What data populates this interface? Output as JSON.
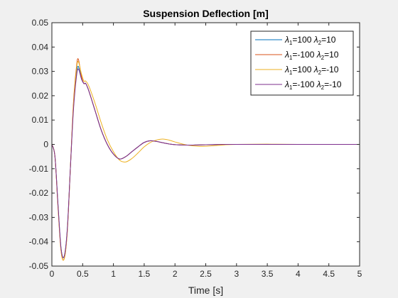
{
  "chart_data": {
    "type": "line",
    "title": "Suspension Deflection [m]",
    "xlabel": "Time [s]",
    "ylabel": "",
    "xlim": [
      0,
      5
    ],
    "ylim": [
      -0.05,
      0.05
    ],
    "xticks": [
      0,
      0.5,
      1,
      1.5,
      2,
      2.5,
      3,
      3.5,
      4,
      4.5,
      5
    ],
    "xtick_labels": [
      "0",
      "0.5",
      "1",
      "1.5",
      "2",
      "2.5",
      "3",
      "3.5",
      "4",
      "4.5",
      "5"
    ],
    "yticks": [
      -0.05,
      -0.04,
      -0.03,
      -0.02,
      -0.01,
      0,
      0.01,
      0.02,
      0.03,
      0.04,
      0.05
    ],
    "ytick_labels": [
      "-0.05",
      "-0.04",
      "-0.03",
      "-0.02",
      "-0.01",
      "0",
      "0.01",
      "0.02",
      "0.03",
      "0.04",
      "0.05"
    ],
    "grid": false,
    "legend_position": "top-right",
    "series": [
      {
        "legend": {
          "l1": "=100 ",
          "l2": "=10"
        },
        "color": "#0072BD",
        "x": [
          0,
          0.05,
          0.1,
          0.15,
          0.2,
          0.25,
          0.3,
          0.35,
          0.4,
          0.43,
          0.48,
          0.52,
          0.55,
          0.6,
          0.7,
          0.8,
          0.9,
          1.0,
          1.1,
          1.2,
          1.3,
          1.4,
          1.5,
          1.6,
          1.7,
          1.8,
          1.9,
          2.0,
          2.2,
          2.4,
          2.6,
          2.8,
          3.0,
          3.5,
          4.0,
          5.0
        ],
        "y": [
          0,
          -0.005,
          -0.025,
          -0.043,
          -0.046,
          -0.035,
          -0.01,
          0.015,
          0.029,
          0.032,
          0.027,
          0.025,
          0.025,
          0.022,
          0.014,
          0.006,
          0.0,
          -0.004,
          -0.006,
          -0.005,
          -0.003,
          -0.001,
          0.0008,
          0.0015,
          0.0012,
          0.0007,
          0.0002,
          -0.0001,
          -0.0003,
          -0.0002,
          -0.0001,
          0.0,
          0.0,
          0.0,
          0.0,
          0.0
        ]
      },
      {
        "legend": {
          "l1": "=-100 ",
          "l2": "=10"
        },
        "color": "#D95319",
        "x": [
          0,
          0.05,
          0.1,
          0.15,
          0.2,
          0.25,
          0.3,
          0.35,
          0.4,
          0.43,
          0.48,
          0.52,
          0.55,
          0.6,
          0.7,
          0.8,
          0.9,
          1.0,
          1.1,
          1.2,
          1.3,
          1.4,
          1.5,
          1.6,
          1.7,
          1.8,
          1.9,
          2.0,
          2.2,
          2.4,
          2.6,
          2.8,
          3.0,
          3.5,
          4.0,
          5.0
        ],
        "y": [
          0,
          -0.005,
          -0.026,
          -0.044,
          -0.047,
          -0.036,
          -0.01,
          0.017,
          0.032,
          0.035,
          0.028,
          0.025,
          0.025,
          0.022,
          0.014,
          0.006,
          0.0,
          -0.004,
          -0.006,
          -0.005,
          -0.003,
          -0.001,
          0.0008,
          0.0015,
          0.0012,
          0.0007,
          0.0002,
          -0.0001,
          -0.0003,
          -0.0002,
          -0.0001,
          0.0,
          0.0,
          0.0,
          0.0,
          0.0
        ]
      },
      {
        "legend": {
          "l1": "=100 ",
          "l2": "=-10"
        },
        "color": "#EDB120",
        "x": [
          0,
          0.05,
          0.1,
          0.15,
          0.2,
          0.25,
          0.3,
          0.35,
          0.4,
          0.43,
          0.48,
          0.52,
          0.55,
          0.6,
          0.7,
          0.8,
          0.9,
          1.0,
          1.1,
          1.2,
          1.3,
          1.4,
          1.5,
          1.6,
          1.7,
          1.8,
          1.9,
          2.0,
          2.2,
          2.4,
          2.6,
          2.8,
          3.0,
          3.5,
          4.0,
          5.0
        ],
        "y": [
          0,
          -0.005,
          -0.026,
          -0.044,
          -0.047,
          -0.036,
          -0.01,
          0.016,
          0.031,
          0.034,
          0.029,
          0.026,
          0.026,
          0.024,
          0.017,
          0.009,
          0.002,
          -0.003,
          -0.0065,
          -0.0072,
          -0.0058,
          -0.0035,
          -0.001,
          0.0008,
          0.0018,
          0.0022,
          0.0018,
          0.001,
          -0.0003,
          -0.0008,
          -0.0006,
          -0.0002,
          0.0,
          0.0001,
          0.0,
          0.0
        ]
      },
      {
        "legend": {
          "l1": "=-100 ",
          "l2": "=-10"
        },
        "color": "#7E2F8E",
        "x": [
          0,
          0.05,
          0.1,
          0.15,
          0.2,
          0.25,
          0.3,
          0.35,
          0.4,
          0.43,
          0.48,
          0.52,
          0.55,
          0.6,
          0.7,
          0.8,
          0.9,
          1.0,
          1.1,
          1.2,
          1.3,
          1.4,
          1.5,
          1.6,
          1.7,
          1.8,
          1.9,
          2.0,
          2.2,
          2.4,
          2.6,
          2.8,
          3.0,
          3.5,
          4.0,
          5.0
        ],
        "y": [
          0,
          -0.005,
          -0.025,
          -0.043,
          -0.046,
          -0.035,
          -0.01,
          0.014,
          0.028,
          0.031,
          0.027,
          0.025,
          0.025,
          0.022,
          0.014,
          0.006,
          0.0,
          -0.004,
          -0.006,
          -0.005,
          -0.003,
          -0.001,
          0.0008,
          0.0015,
          0.0012,
          0.0007,
          0.0002,
          -0.0001,
          -0.0003,
          -0.0002,
          -0.0001,
          0.0,
          0.0,
          0.0,
          0.0,
          0.0
        ]
      }
    ]
  }
}
